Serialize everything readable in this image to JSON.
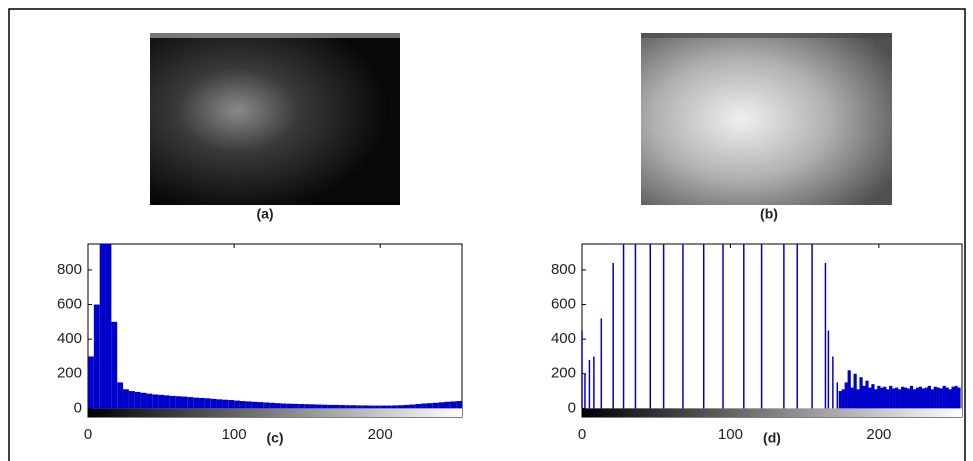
{
  "captions": [
    "(a)",
    "(b)"
  ],
  "chart_data": [
    {
      "type": "histogram",
      "caption": "(c)",
      "color": "#0000cc",
      "bins": [
        0,
        4,
        8,
        12,
        16,
        20,
        24,
        28,
        32,
        36,
        40,
        44,
        48,
        52,
        56,
        60,
        64,
        68,
        72,
        76,
        80,
        84,
        88,
        92,
        96,
        100,
        104,
        108,
        112,
        116,
        120,
        124,
        128,
        132,
        136,
        140,
        144,
        148,
        152,
        156,
        160,
        164,
        168,
        172,
        176,
        180,
        184,
        188,
        192,
        196,
        200,
        204,
        208,
        212,
        216,
        220,
        224,
        228,
        232,
        236,
        240,
        244,
        248,
        252,
        256
      ],
      "counts": [
        300,
        600,
        950,
        950,
        500,
        150,
        110,
        100,
        95,
        90,
        85,
        80,
        78,
        75,
        72,
        70,
        68,
        65,
        62,
        60,
        58,
        55,
        52,
        50,
        48,
        45,
        42,
        40,
        38,
        36,
        34,
        32,
        30,
        28,
        27,
        26,
        25,
        24,
        23,
        22,
        21,
        20,
        20,
        19,
        18,
        18,
        17,
        17,
        16,
        16,
        16,
        16,
        17,
        18,
        20,
        22,
        25,
        28,
        30,
        32,
        35,
        38,
        40,
        42
      ],
      "xlim": [
        0,
        256
      ],
      "xticks": [
        0,
        100,
        200
      ],
      "ylim": [
        -50,
        950
      ],
      "yticks": [
        0,
        200,
        400,
        600,
        800
      ]
    },
    {
      "type": "stem",
      "caption": "(d)",
      "color": "#0000cc",
      "x": [
        0,
        2,
        5,
        8,
        13,
        21,
        28,
        36,
        46,
        55,
        68,
        82,
        95,
        109,
        121,
        136,
        145,
        155,
        164,
        166,
        169,
        172,
        174,
        176,
        178,
        180,
        182,
        184,
        186,
        188,
        190,
        192,
        194,
        196,
        198,
        200,
        202,
        204,
        206,
        208,
        210,
        212,
        214,
        216,
        218,
        220,
        222,
        224,
        226,
        228,
        230,
        232,
        234,
        236,
        238,
        240,
        242,
        244,
        246,
        248,
        250,
        252,
        254
      ],
      "values": [
        450,
        200,
        280,
        300,
        520,
        840,
        950,
        950,
        950,
        950,
        950,
        950,
        950,
        950,
        950,
        950,
        950,
        950,
        840,
        450,
        300,
        150,
        100,
        110,
        150,
        220,
        120,
        200,
        110,
        180,
        130,
        160,
        120,
        140,
        110,
        130,
        120,
        125,
        110,
        130,
        115,
        120,
        110,
        125,
        120,
        115,
        130,
        110,
        120,
        125,
        115,
        120,
        130,
        110,
        125,
        120,
        115,
        130,
        120,
        110,
        125,
        130,
        120
      ],
      "xlim": [
        0,
        256
      ],
      "xticks": [
        0,
        100,
        200
      ],
      "ylim": [
        -50,
        950
      ],
      "yticks": [
        0,
        200,
        400,
        600,
        800
      ]
    }
  ]
}
